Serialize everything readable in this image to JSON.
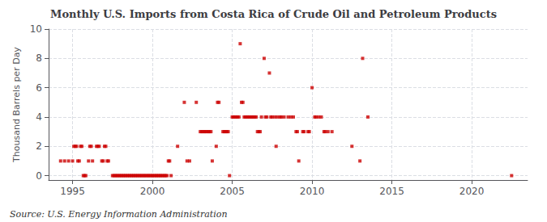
{
  "chart_data": {
    "type": "scatter",
    "title": "Monthly U.S. Imports from Costa Rica of Crude Oil and Petroleum Products",
    "ylabel": "Thousand Barrels per Day",
    "annotations": [
      "Source: U.S. Energy Information Administration"
    ],
    "color": "#cc0000",
    "marker": "square",
    "grid": true,
    "xlim": [
      1993.5,
      2023.5
    ],
    "ylim": [
      -0.3,
      10
    ],
    "xticks": [
      1995,
      2000,
      2005,
      2010,
      2015,
      2020
    ],
    "yticks": [
      0,
      2,
      4,
      6,
      8,
      10
    ],
    "x": [
      1994.25,
      1994.5,
      1994.75,
      1995.0,
      1995.08,
      1995.17,
      1995.25,
      1995.33,
      1995.42,
      1995.5,
      1995.58,
      1995.67,
      1995.75,
      1995.83,
      1996.0,
      1996.08,
      1996.17,
      1996.25,
      1996.5,
      1996.58,
      1996.67,
      1996.83,
      1996.92,
      1997.0,
      1997.08,
      1997.17,
      1997.25,
      1997.5,
      1997.58,
      1997.67,
      1997.75,
      1997.83,
      1997.92,
      1998.0,
      1998.08,
      1998.17,
      1998.25,
      1998.33,
      1998.42,
      1998.5,
      1998.58,
      1998.67,
      1998.75,
      1998.83,
      1998.92,
      1999.0,
      1999.08,
      1999.17,
      1999.25,
      1999.33,
      1999.42,
      1999.5,
      1999.58,
      1999.67,
      1999.75,
      1999.83,
      1999.92,
      2000.0,
      2000.08,
      2000.17,
      2000.25,
      2000.33,
      2000.42,
      2000.5,
      2000.58,
      2000.67,
      2000.75,
      2000.83,
      2000.92,
      2001.0,
      2001.08,
      2001.17,
      2001.58,
      2002.0,
      2002.17,
      2002.33,
      2002.75,
      2003.0,
      2003.08,
      2003.17,
      2003.25,
      2003.33,
      2003.42,
      2003.5,
      2003.58,
      2003.67,
      2003.75,
      2004.0,
      2004.08,
      2004.17,
      2004.42,
      2004.5,
      2004.58,
      2004.67,
      2004.75,
      2004.83,
      2005.0,
      2005.08,
      2005.17,
      2005.25,
      2005.33,
      2005.42,
      2005.5,
      2005.58,
      2005.67,
      2005.75,
      2005.83,
      2005.92,
      2006.0,
      2006.08,
      2006.17,
      2006.25,
      2006.33,
      2006.42,
      2006.5,
      2006.58,
      2006.67,
      2006.75,
      2006.83,
      2007.0,
      2007.08,
      2007.17,
      2007.33,
      2007.42,
      2007.5,
      2007.67,
      2007.75,
      2007.83,
      2008.0,
      2008.08,
      2008.25,
      2008.5,
      2008.67,
      2008.83,
      2009.0,
      2009.08,
      2009.17,
      2009.42,
      2009.5,
      2009.75,
      2009.83,
      2010.0,
      2010.17,
      2010.25,
      2010.42,
      2010.58,
      2010.75,
      2010.83,
      2011.0,
      2011.25,
      2012.5,
      2013.0,
      2013.17,
      2013.5,
      2022.5
    ],
    "values": [
      1,
      1,
      1,
      1,
      2,
      2,
      2,
      1,
      1,
      2,
      2,
      0,
      0,
      0,
      1,
      2,
      2,
      1,
      2,
      2,
      2,
      1,
      1,
      2,
      2,
      1,
      1,
      0,
      0,
      0,
      0,
      0,
      0,
      0,
      0,
      0,
      0,
      0,
      0,
      0,
      0,
      0,
      0,
      0,
      0,
      0,
      0,
      0,
      0,
      0,
      0,
      0,
      0,
      0,
      0,
      0,
      0,
      0,
      0,
      0,
      0,
      0,
      0,
      0,
      0,
      0,
      0,
      0,
      0,
      1,
      1,
      0,
      2,
      5,
      1,
      1,
      5,
      3,
      3,
      3,
      3,
      3,
      3,
      3,
      3,
      3,
      1,
      2,
      5,
      5,
      3,
      3,
      3,
      3,
      3,
      0,
      4,
      4,
      4,
      4,
      4,
      4,
      9,
      5,
      5,
      4,
      4,
      4,
      4,
      4,
      4,
      4,
      4,
      4,
      4,
      3,
      3,
      3,
      4,
      8,
      4,
      4,
      7,
      4,
      4,
      4,
      2,
      4,
      4,
      4,
      4,
      4,
      4,
      4,
      3,
      3,
      1,
      3,
      3,
      3,
      3,
      6,
      4,
      4,
      4,
      4,
      3,
      3,
      3,
      3,
      2,
      1,
      8,
      4,
      0
    ]
  }
}
